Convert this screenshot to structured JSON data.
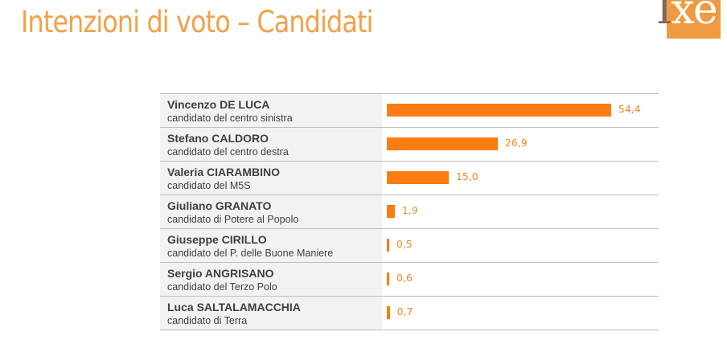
{
  "page": {
    "title": "Intenzioni di voto – Candidati"
  },
  "logo": {
    "text_part1": "I",
    "text_part2": "xe"
  },
  "colors": {
    "bar": "#fb7d11",
    "title": "#f0a24a",
    "value": "#ee8a20",
    "label_bg": "#f2f2f2"
  },
  "chart_data": {
    "type": "bar",
    "orientation": "horizontal",
    "categories": [
      "Vincenzo DE LUCA",
      "Stefano CALDORO",
      "Valeria CIARAMBINO",
      "Giuliano GRANATO",
      "Giuseppe CIRILLO",
      "Sergio ANGRISANO",
      "Luca SALTALAMACCHIA"
    ],
    "subtitles": [
      "candidato del centro sinistra",
      "candidato del centro destra",
      "candidato del M5S",
      "candidato di Potere al Popolo",
      "candidato del P. delle Buone Maniere",
      "candidato del Terzo Polo",
      "candidato di Terra"
    ],
    "values": [
      54.4,
      26.9,
      15.0,
      1.9,
      0.5,
      0.6,
      0.7
    ],
    "value_labels": [
      "54,4",
      "26,9",
      "15,0",
      "1,9",
      "0,5",
      "0,6",
      "0,7"
    ],
    "xlim": [
      0,
      55
    ]
  }
}
